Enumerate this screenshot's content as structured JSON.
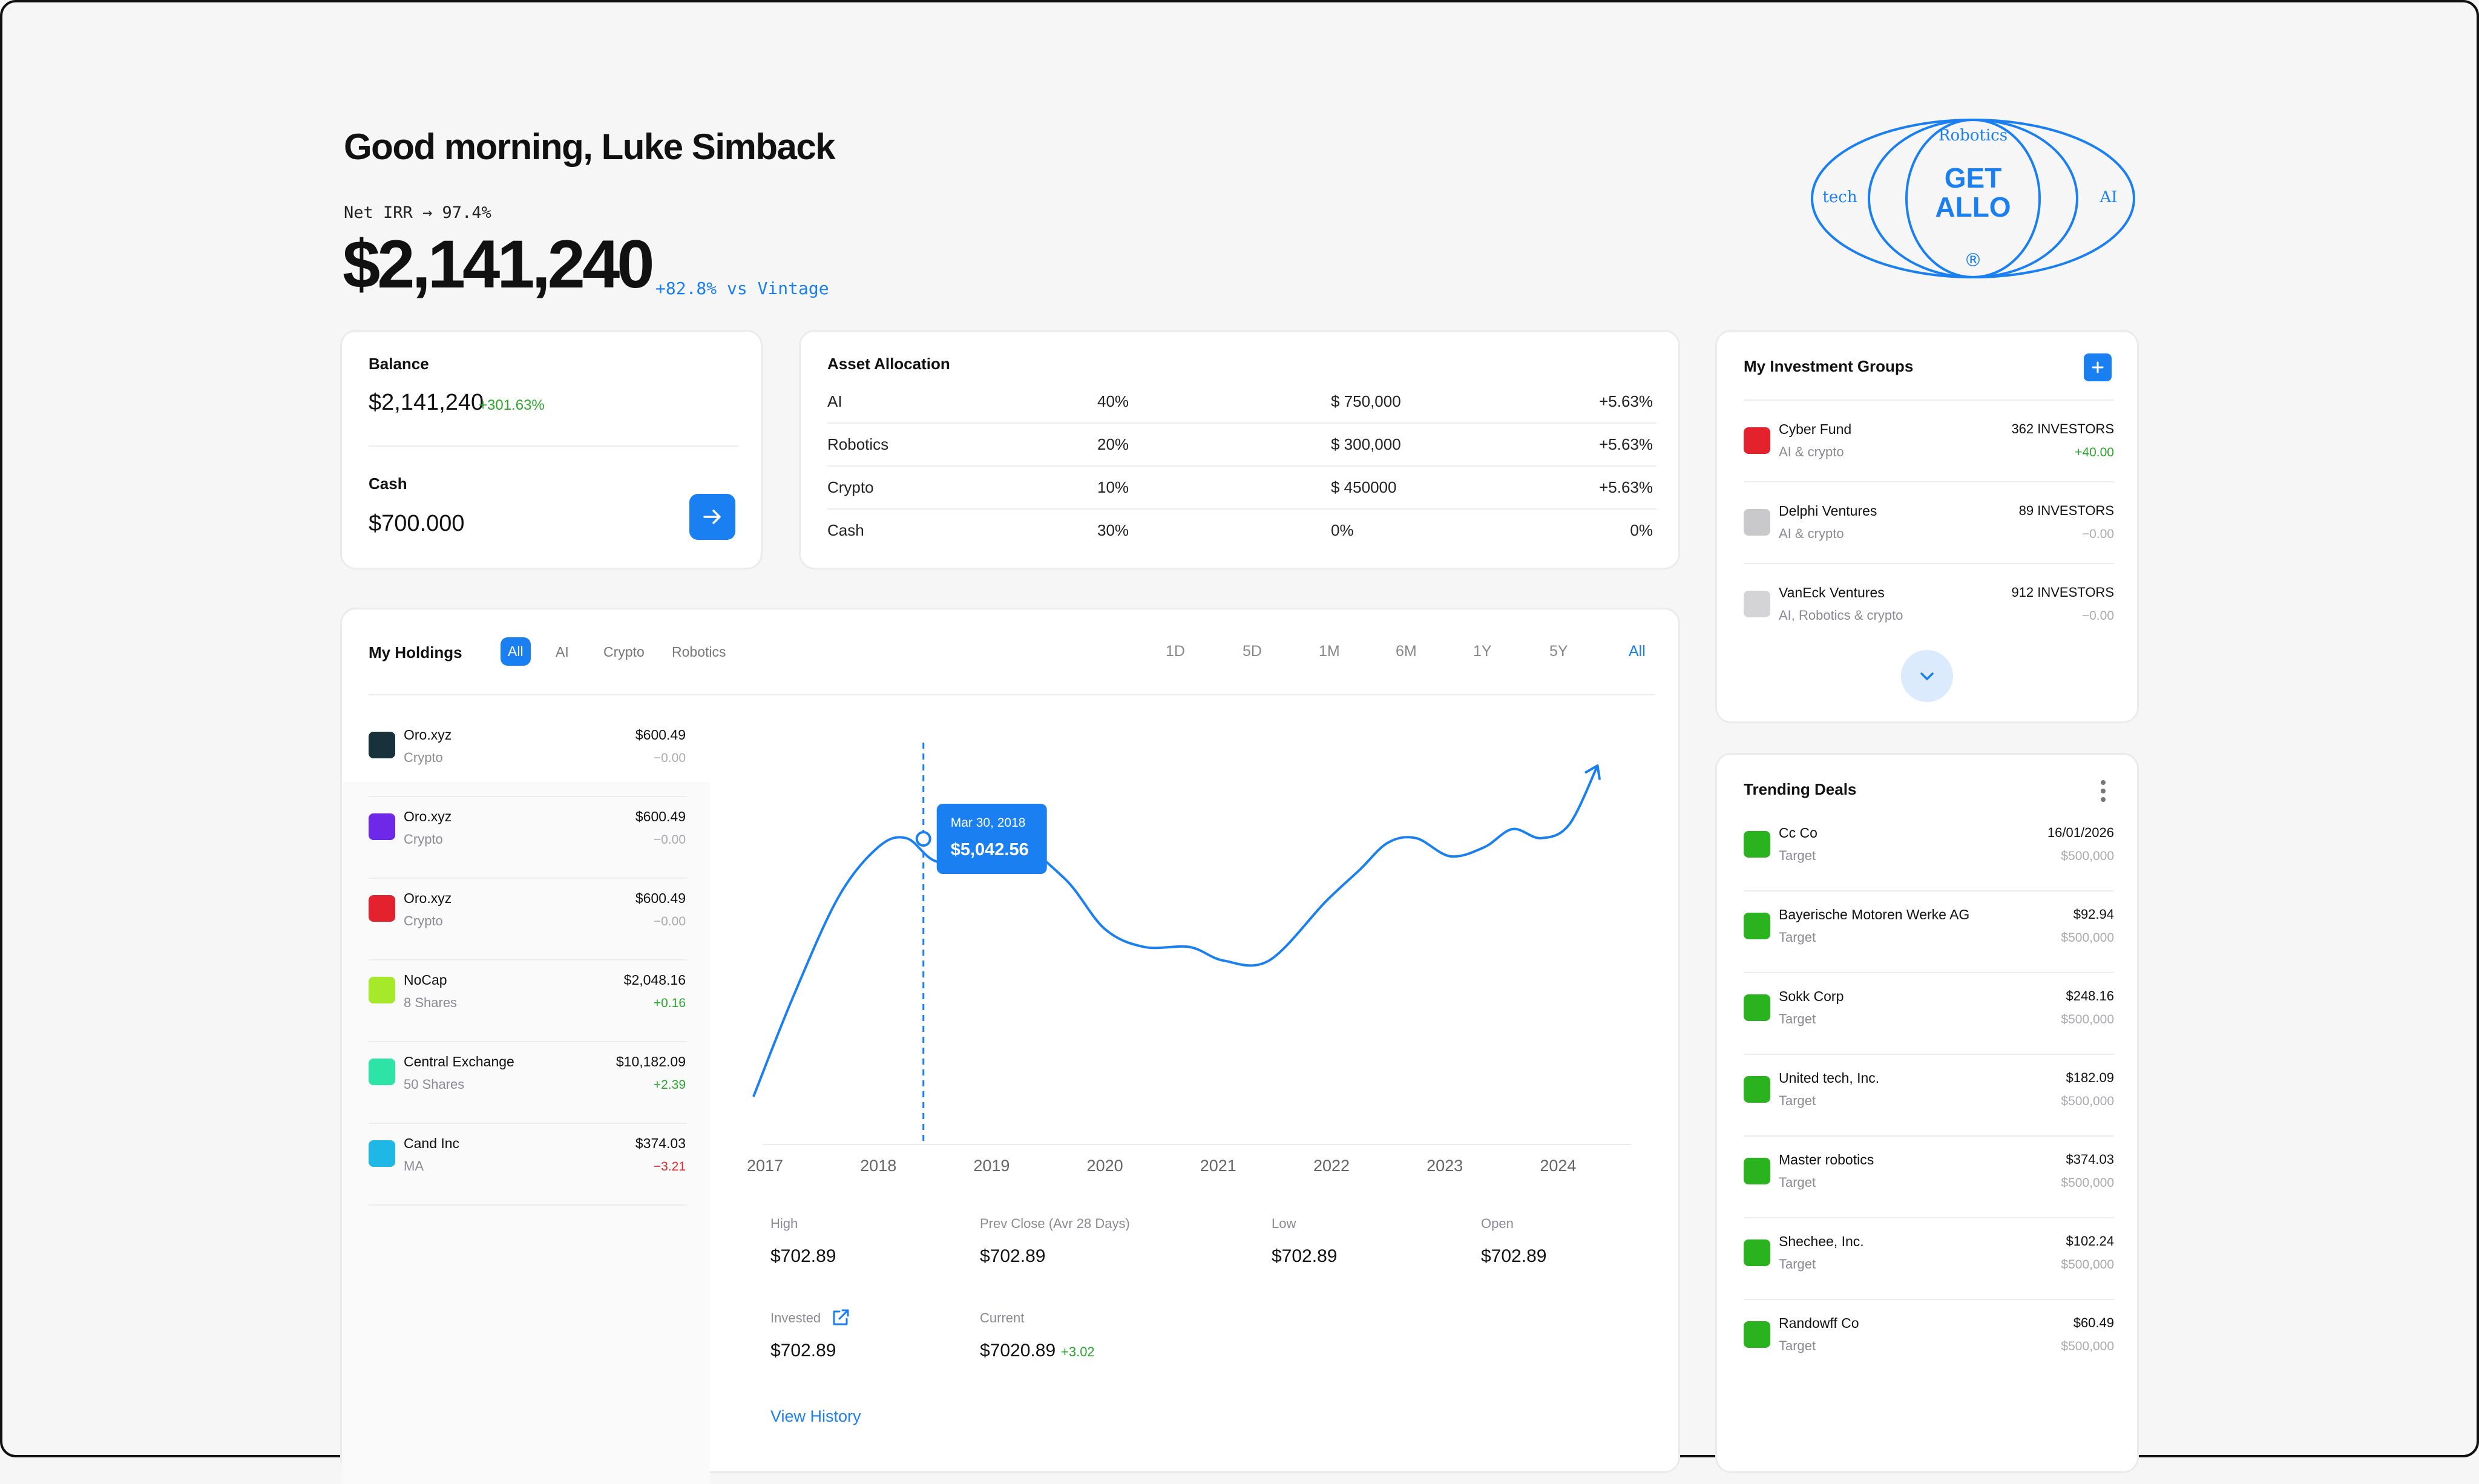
{
  "header": {
    "greeting": "Good morning, Luke Simback",
    "net_irr": "Net IRR → 97.4%",
    "total_value": "$2,141,240",
    "vs_vintage": "+82.8% vs Vintage"
  },
  "logo": {
    "top": "Robotics",
    "left": "tech",
    "right": "AI",
    "line1": "GET",
    "line2": "ALLO",
    "mark": "®"
  },
  "balance": {
    "title": "Balance",
    "value": "$2,141,240",
    "change": "+301.63%",
    "cash_title": "Cash",
    "cash_value": "$700.000",
    "action_icon": "arrow-right-icon"
  },
  "asset_allocation": {
    "title": "Asset Allocation",
    "rows": [
      {
        "name": "AI",
        "pct": "40%",
        "amount": "$ 750,000",
        "change": "+5.63%"
      },
      {
        "name": "Robotics",
        "pct": "20%",
        "amount": "$ 300,000",
        "change": "+5.63%"
      },
      {
        "name": "Crypto",
        "pct": "10%",
        "amount": "$ 450000",
        "change": "+5.63%"
      },
      {
        "name": "Cash",
        "pct": "30%",
        "amount": "0%",
        "change": "0%"
      }
    ]
  },
  "holdings": {
    "title": "My Holdings",
    "filters": [
      "All",
      "AI",
      "Crypto",
      "Robotics"
    ],
    "active_filter": "All",
    "ranges": [
      "1D",
      "5D",
      "1M",
      "6M",
      "1Y",
      "5Y",
      "All"
    ],
    "active_range": "All",
    "items": [
      {
        "name": "Oro.xyz",
        "sub": "Crypto",
        "price": "$600.49",
        "change": "−0.00",
        "color": "#17323a",
        "trend": "flat"
      },
      {
        "name": "Oro.xyz",
        "sub": "Crypto",
        "price": "$600.49",
        "change": "−0.00",
        "color": "#6d28e8",
        "trend": "flat"
      },
      {
        "name": "Oro.xyz",
        "sub": "Crypto",
        "price": "$600.49",
        "change": "−0.00",
        "color": "#e3222e",
        "trend": "flat"
      },
      {
        "name": "NoCap",
        "sub": "8 Shares",
        "price": "$2,048.16",
        "change": "+0.16",
        "color": "#a6e82a",
        "trend": "up"
      },
      {
        "name": "Central Exchange",
        "sub": "50 Shares",
        "price": "$10,182.09",
        "change": "+2.39",
        "color": "#2ee3a6",
        "trend": "up"
      },
      {
        "name": "Cand Inc",
        "sub": "MA",
        "price": "$374.03",
        "change": "−3.21",
        "color": "#1fb8e6",
        "trend": "down"
      }
    ],
    "tooltip": {
      "date": "Mar 30, 2018",
      "value": "$5,042.56"
    },
    "stats": {
      "high_label": "High",
      "high": "$702.89",
      "prev_label": "Prev Close (Avr 28 Days)",
      "prev": "$702.89",
      "low_label": "Low",
      "low": "$702.89",
      "open_label": "Open",
      "open": "$702.89",
      "invested_label": "Invested",
      "invested": "$702.89",
      "current_label": "Current",
      "current": "$7020.89",
      "current_change": "+3.02"
    },
    "view_history": "View History"
  },
  "chart_data": {
    "type": "line",
    "x": [
      2016.85,
      2017.2,
      2017.6,
      2017.95,
      2018.2,
      2018.45,
      2018.8,
      2019.15,
      2019.6,
      2019.95,
      2020.3,
      2020.7,
      2021.0,
      2021.4,
      2021.9,
      2022.2,
      2022.45,
      2022.7,
      2023.0,
      2023.3,
      2023.55,
      2023.8,
      2024.05,
      2024.3
    ],
    "y": [
      2200,
      3300,
      4400,
      4950,
      5050,
      4800,
      4750,
      5000,
      4600,
      4050,
      3850,
      3850,
      3700,
      3700,
      4350,
      4700,
      5000,
      5050,
      4850,
      4950,
      5150,
      5050,
      5200,
      5850
    ],
    "xlabel": "",
    "ylabel": "",
    "tick_labels": [
      "2017",
      "2018",
      "2019",
      "2020",
      "2021",
      "2022",
      "2023",
      "2024"
    ],
    "highlight": {
      "x": 2018.35,
      "y": 5042.56,
      "label": "Mar 30, 2018"
    },
    "color": "#1a7ff0"
  },
  "groups": {
    "title": "My Investment Groups",
    "add_icon": "plus-icon",
    "items": [
      {
        "name": "Cyber Fund",
        "sub": "AI & crypto",
        "investors": "362 INVESTORS",
        "change": "+40.00",
        "color": "#e3222e",
        "trend": "up"
      },
      {
        "name": "Delphi Ventures",
        "sub": "AI & crypto",
        "investors": "89 INVESTORS",
        "change": "−0.00",
        "color": "#c9c9cc",
        "trend": "flat"
      },
      {
        "name": "VanEck Ventures",
        "sub": "AI, Robotics & crypto",
        "investors": "912 INVESTORS",
        "change": "−0.00",
        "color": "#d4d4d6",
        "trend": "flat"
      }
    ],
    "expand_icon": "chevron-down-icon"
  },
  "trending": {
    "title": "Trending Deals",
    "menu_icon": "more-vertical-icon",
    "items": [
      {
        "name": "Cc Co",
        "sub": "Target",
        "value": "16/01/2026",
        "target": "$500,000"
      },
      {
        "name": "Bayerische Motoren Werke AG",
        "sub": "Target",
        "value": "$92.94",
        "target": "$500,000"
      },
      {
        "name": "Sokk Corp",
        "sub": "Target",
        "value": "$248.16",
        "target": "$500,000"
      },
      {
        "name": "United tech, Inc.",
        "sub": "Target",
        "value": "$182.09",
        "target": "$500,000"
      },
      {
        "name": "Master robotics",
        "sub": "Target",
        "value": "$374.03",
        "target": "$500,000"
      },
      {
        "name": "Shechee, Inc.",
        "sub": "Target",
        "value": "$102.24",
        "target": "$500,000"
      },
      {
        "name": "Randowff Co",
        "sub": "Target",
        "value": "$60.49",
        "target": "$500,000"
      }
    ],
    "color": "#2ab21f"
  }
}
